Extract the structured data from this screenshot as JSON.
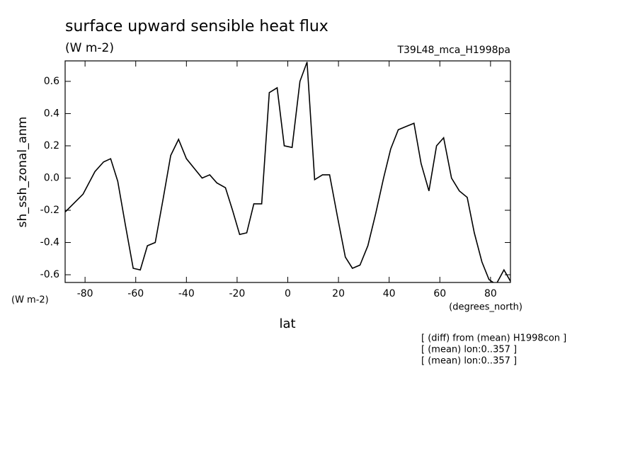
{
  "chart_data": {
    "type": "line",
    "title": "surface upward sensible heat flux",
    "subtitle": "(W m-2)",
    "run_label": "T39L48_mca_H1998pa",
    "y_label": "sh_ssh_zonal_anm",
    "y_units": "(W m-2)",
    "x_label": "lat",
    "x_units": "(degrees_north)",
    "notes": [
      "[ (diff) from (mean) H1998con ]",
      "[ (mean) lon:0..357 ]",
      "[ (mean) lon:0..357 ]"
    ],
    "xlim": [
      -87.86,
      87.86
    ],
    "ylim": [
      -0.648,
      0.727
    ],
    "xticks": [
      -80,
      -60,
      -40,
      -20,
      0,
      20,
      40,
      60,
      80
    ],
    "yticks": [
      -0.6,
      -0.4,
      -0.2,
      {
        "value": 0,
        "label": "0.0"
      },
      0.2,
      0.4,
      0.6
    ],
    "grid": false,
    "x": [
      -87.8,
      -80.8,
      -76.1,
      -72.7,
      -69.9,
      -67.1,
      -64.1,
      -61.0,
      -58.2,
      -55.4,
      -52.3,
      -49.2,
      -46.2,
      -43.1,
      -40.0,
      -36.9,
      -33.8,
      -30.8,
      -28.0,
      -24.6,
      -21.8,
      -19.0,
      -16.2,
      -13.4,
      -10.3,
      -7.3,
      -4.2,
      -1.4,
      1.7,
      4.8,
      7.6,
      10.6,
      13.7,
      16.5,
      19.6,
      22.7,
      25.5,
      28.5,
      31.6,
      34.7,
      37.8,
      40.6,
      43.6,
      46.7,
      49.8,
      52.6,
      55.7,
      58.7,
      61.5,
      64.6,
      67.7,
      70.8,
      73.6,
      76.6,
      79.4,
      82.2,
      85.3,
      87.86
    ],
    "series": [
      {
        "name": "sh_ssh_zonal_anm",
        "color": "#000000",
        "values": [
          -0.21,
          -0.1,
          0.04,
          0.1,
          0.12,
          -0.02,
          -0.29,
          -0.56,
          -0.57,
          -0.42,
          -0.4,
          -0.13,
          0.14,
          0.24,
          0.12,
          0.06,
          0.0,
          0.02,
          -0.03,
          -0.06,
          -0.2,
          -0.35,
          -0.34,
          -0.16,
          -0.16,
          0.53,
          0.56,
          0.2,
          0.19,
          0.6,
          0.72,
          -0.01,
          0.02,
          0.02,
          -0.24,
          -0.49,
          -0.56,
          -0.54,
          -0.42,
          -0.22,
          0.0,
          0.18,
          0.3,
          0.32,
          0.34,
          0.09,
          -0.08,
          0.2,
          0.25,
          0.0,
          -0.08,
          -0.12,
          -0.34,
          -0.52,
          -0.63,
          -0.66,
          -0.57,
          -0.64
        ]
      }
    ]
  }
}
